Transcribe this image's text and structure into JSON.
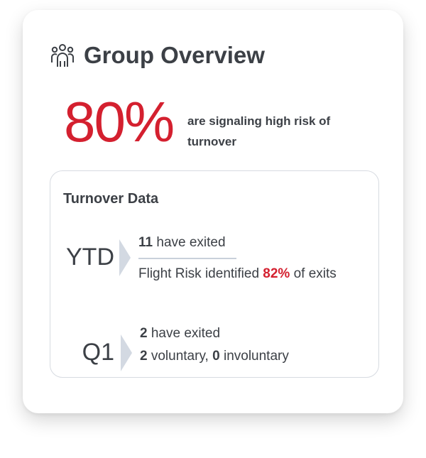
{
  "header": {
    "title": "Group Overview",
    "icon": "group-users-icon"
  },
  "summary": {
    "percent": "80%",
    "label": "are signaling high risk of turnover"
  },
  "turnover": {
    "title": "Turnover Data",
    "ytd": {
      "period": "YTD",
      "exited_count": "11",
      "exited_text": " have exited",
      "flight_prefix": "Flight Risk identified ",
      "flight_pct": "82%",
      "flight_suffix": " of exits"
    },
    "q1": {
      "period": "Q1",
      "exited_count": "2",
      "exited_text": " have exited",
      "voluntary": "2",
      "voluntary_text": " voluntary, ",
      "involuntary": "0",
      "involuntary_text": " involuntary"
    }
  },
  "colors": {
    "accent": "#d4202f",
    "text": "#3c4046",
    "chevron": "#d3d9e2"
  }
}
